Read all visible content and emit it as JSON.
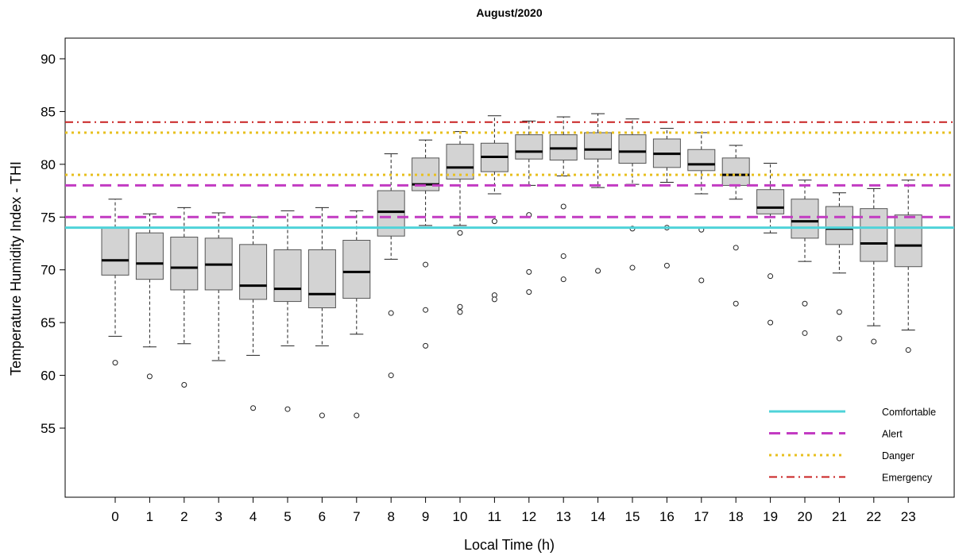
{
  "chart_data": {
    "type": "boxplot",
    "title": "August/2020",
    "xlabel": "Local Time (h)",
    "ylabel": "Temperature Humidity Index - THI",
    "categories": [
      "0",
      "1",
      "2",
      "3",
      "4",
      "5",
      "6",
      "7",
      "8",
      "9",
      "10",
      "11",
      "12",
      "13",
      "14",
      "15",
      "16",
      "17",
      "18",
      "19",
      "20",
      "21",
      "22",
      "23"
    ],
    "y_ticks": [
      "55",
      "60",
      "65",
      "70",
      "75",
      "80",
      "85",
      "90"
    ],
    "ylim": [
      50,
      91
    ],
    "grid": false,
    "legend_position": "bottom-right",
    "boxes": [
      {
        "x": "0",
        "whisker_low": 63.7,
        "q1": 69.5,
        "median": 70.9,
        "q3": 74.0,
        "whisker_high": 76.7,
        "outliers": [
          61.2
        ]
      },
      {
        "x": "1",
        "whisker_low": 62.7,
        "q1": 69.1,
        "median": 70.6,
        "q3": 73.5,
        "whisker_high": 75.3,
        "outliers": [
          59.9
        ]
      },
      {
        "x": "2",
        "whisker_low": 63.0,
        "q1": 68.1,
        "median": 70.2,
        "q3": 73.1,
        "whisker_high": 75.9,
        "outliers": [
          59.1
        ]
      },
      {
        "x": "3",
        "whisker_low": 61.4,
        "q1": 68.1,
        "median": 70.5,
        "q3": 73.0,
        "whisker_high": 75.4,
        "outliers": []
      },
      {
        "x": "4",
        "whisker_low": 61.9,
        "q1": 67.2,
        "median": 68.5,
        "q3": 72.4,
        "whisker_high": 75.0,
        "outliers": [
          56.9
        ]
      },
      {
        "x": "5",
        "whisker_low": 62.8,
        "q1": 67.0,
        "median": 68.2,
        "q3": 71.9,
        "whisker_high": 75.6,
        "outliers": [
          56.8
        ]
      },
      {
        "x": "6",
        "whisker_low": 62.8,
        "q1": 66.4,
        "median": 67.7,
        "q3": 71.9,
        "whisker_high": 75.9,
        "outliers": [
          56.2
        ]
      },
      {
        "x": "7",
        "whisker_low": 63.9,
        "q1": 67.3,
        "median": 69.8,
        "q3": 72.8,
        "whisker_high": 75.6,
        "outliers": [
          56.2
        ]
      },
      {
        "x": "8",
        "whisker_low": 71.0,
        "q1": 73.2,
        "median": 75.5,
        "q3": 77.5,
        "whisker_high": 81.0,
        "outliers": [
          65.9,
          60.0
        ]
      },
      {
        "x": "9",
        "whisker_low": 74.2,
        "q1": 77.5,
        "median": 78.1,
        "q3": 80.6,
        "whisker_high": 82.3,
        "outliers": [
          70.5,
          66.2,
          62.8
        ]
      },
      {
        "x": "10",
        "whisker_low": 74.2,
        "q1": 78.6,
        "median": 79.7,
        "q3": 81.9,
        "whisker_high": 83.1,
        "outliers": [
          73.5,
          66.5,
          66.0
        ]
      },
      {
        "x": "11",
        "whisker_low": 77.2,
        "q1": 79.3,
        "median": 80.7,
        "q3": 82.0,
        "whisker_high": 84.6,
        "outliers": [
          74.6,
          67.6,
          67.2
        ]
      },
      {
        "x": "12",
        "whisker_low": 78.0,
        "q1": 80.5,
        "median": 81.2,
        "q3": 82.8,
        "whisker_high": 84.1,
        "outliers": [
          75.2,
          69.8,
          67.9
        ]
      },
      {
        "x": "13",
        "whisker_low": 78.9,
        "q1": 80.4,
        "median": 81.5,
        "q3": 82.8,
        "whisker_high": 84.5,
        "outliers": [
          76.0,
          71.3,
          69.1
        ]
      },
      {
        "x": "14",
        "whisker_low": 77.8,
        "q1": 80.5,
        "median": 81.4,
        "q3": 83.0,
        "whisker_high": 84.8,
        "outliers": [
          69.9
        ]
      },
      {
        "x": "15",
        "whisker_low": 78.1,
        "q1": 80.1,
        "median": 81.2,
        "q3": 82.8,
        "whisker_high": 84.3,
        "outliers": [
          73.9,
          70.2
        ]
      },
      {
        "x": "16",
        "whisker_low": 78.3,
        "q1": 79.7,
        "median": 81.0,
        "q3": 82.4,
        "whisker_high": 83.4,
        "outliers": [
          74.0,
          70.4
        ]
      },
      {
        "x": "17",
        "whisker_low": 77.2,
        "q1": 79.4,
        "median": 80.0,
        "q3": 81.4,
        "whisker_high": 83.0,
        "outliers": [
          73.8,
          69.0
        ]
      },
      {
        "x": "18",
        "whisker_low": 76.7,
        "q1": 78.0,
        "median": 79.0,
        "q3": 80.6,
        "whisker_high": 81.8,
        "outliers": [
          72.1,
          66.8
        ]
      },
      {
        "x": "19",
        "whisker_low": 73.5,
        "q1": 75.3,
        "median": 75.9,
        "q3": 77.6,
        "whisker_high": 80.1,
        "outliers": [
          69.4,
          65.0
        ]
      },
      {
        "x": "20",
        "whisker_low": 70.8,
        "q1": 73.0,
        "median": 74.6,
        "q3": 76.7,
        "whisker_high": 78.5,
        "outliers": [
          66.8,
          64.0
        ]
      },
      {
        "x": "21",
        "whisker_low": 69.7,
        "q1": 72.4,
        "median": 73.9,
        "q3": 76.0,
        "whisker_high": 77.3,
        "outliers": [
          66.0,
          63.5
        ]
      },
      {
        "x": "22",
        "whisker_low": 64.7,
        "q1": 70.8,
        "median": 72.5,
        "q3": 75.8,
        "whisker_high": 77.7,
        "outliers": [
          63.2
        ]
      },
      {
        "x": "23",
        "whisker_low": 64.3,
        "q1": 70.3,
        "median": 72.3,
        "q3": 75.2,
        "whisker_high": 78.5,
        "outliers": [
          62.4
        ]
      }
    ],
    "reference_lines": [
      {
        "name": "Comfortable",
        "values": [
          74
        ],
        "color": "#4fd3d9",
        "style": "solid"
      },
      {
        "name": "Alert",
        "values": [
          75,
          78
        ],
        "color": "#c23bc2",
        "style": "dashed"
      },
      {
        "name": "Danger",
        "values": [
          79,
          83
        ],
        "color": "#e8c020",
        "style": "dotted"
      },
      {
        "name": "Emergency",
        "values": [
          84
        ],
        "color": "#c82020",
        "style": "dashdot"
      }
    ],
    "colors": {
      "box_fill": "#d3d3d3",
      "box_stroke": "#555555",
      "median": "#000000"
    }
  }
}
